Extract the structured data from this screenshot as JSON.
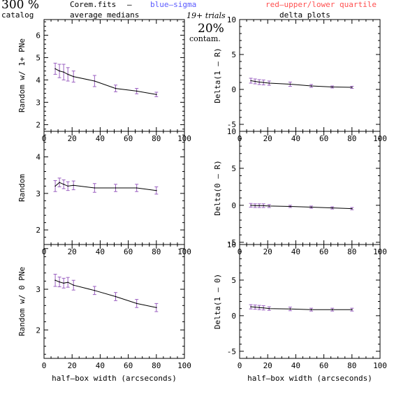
{
  "header": {
    "big_left": "300 %",
    "catalog": "catalog",
    "file": "Corem.fits",
    "dash": "–",
    "blue_label": "blue–sigma",
    "red_label": "red–upper/lower quartile",
    "average_medians": "average medians",
    "trials": "19+ trials",
    "contam_pct": "20%",
    "contam_label": "contam.",
    "delta_plots": "delta plots"
  },
  "colors": {
    "blue": "#5a5aff",
    "red": "#ff5050",
    "errorbar": "#9a5fc0",
    "line": "#000000"
  },
  "chart_data": [
    {
      "type": "line",
      "ylabel": "Random w/ 1+ PNe",
      "xlabel": "",
      "xlim": [
        0,
        100
      ],
      "ylim": [
        1.7,
        6.7
      ],
      "xticks": [
        0,
        20,
        40,
        60,
        80,
        100
      ],
      "yticks": [
        2,
        3,
        4,
        5,
        6
      ],
      "x": [
        8,
        11,
        14,
        17,
        21,
        36,
        51,
        66,
        80
      ],
      "y": [
        4.5,
        4.4,
        4.35,
        4.25,
        4.15,
        3.95,
        3.62,
        3.5,
        3.35
      ],
      "err": [
        0.25,
        0.3,
        0.35,
        0.3,
        0.25,
        0.25,
        0.15,
        0.12,
        0.1
      ]
    },
    {
      "type": "line",
      "ylabel": "Delta(1 – R)",
      "xlabel": "",
      "xlim": [
        0,
        100
      ],
      "ylim": [
        -6,
        10
      ],
      "xticks": [
        0,
        20,
        40,
        60,
        80,
        100
      ],
      "yticks": [
        -5,
        0,
        5,
        10
      ],
      "x": [
        8,
        11,
        14,
        17,
        21,
        36,
        51,
        66,
        80
      ],
      "y": [
        1.25,
        1.15,
        1.05,
        1.0,
        0.9,
        0.75,
        0.5,
        0.35,
        0.3
      ],
      "err": [
        0.35,
        0.35,
        0.35,
        0.35,
        0.3,
        0.3,
        0.2,
        0.15,
        0.15
      ]
    },
    {
      "type": "line",
      "ylabel": "Random",
      "xlabel": "",
      "xlim": [
        0,
        100
      ],
      "ylim": [
        1.6,
        4.7
      ],
      "xticks": [
        0,
        20,
        40,
        60,
        80,
        100
      ],
      "yticks": [
        2,
        3,
        4
      ],
      "x": [
        8,
        11,
        14,
        17,
        21,
        36,
        51,
        66,
        80
      ],
      "y": [
        3.2,
        3.3,
        3.25,
        3.2,
        3.22,
        3.15,
        3.15,
        3.15,
        3.08
      ],
      "err": [
        0.15,
        0.12,
        0.12,
        0.12,
        0.12,
        0.12,
        0.1,
        0.1,
        0.1
      ]
    },
    {
      "type": "line",
      "ylabel": "Delta(0 – R)",
      "xlabel": "",
      "xlim": [
        0,
        100
      ],
      "ylim": [
        -5.3,
        10
      ],
      "xticks": [
        0,
        20,
        40,
        60,
        80,
        100
      ],
      "yticks": [
        -5,
        0,
        5,
        10
      ],
      "x": [
        8,
        11,
        14,
        17,
        21,
        36,
        51,
        66,
        80
      ],
      "y": [
        0.0,
        -0.05,
        -0.05,
        -0.05,
        -0.1,
        -0.15,
        -0.25,
        -0.35,
        -0.45
      ],
      "err": [
        0.25,
        0.25,
        0.25,
        0.25,
        0.2,
        0.15,
        0.15,
        0.15,
        0.15
      ]
    },
    {
      "type": "line",
      "ylabel": "Random w/ 0 PNe",
      "xlabel": "half–box width (arcseconds)",
      "xlim": [
        0,
        100
      ],
      "ylim": [
        1.3,
        4.1
      ],
      "xticks": [
        0,
        20,
        40,
        60,
        80,
        100
      ],
      "yticks": [
        2,
        3
      ],
      "x": [
        8,
        11,
        14,
        17,
        21,
        36,
        51,
        66,
        80
      ],
      "y": [
        3.22,
        3.18,
        3.15,
        3.17,
        3.1,
        2.97,
        2.82,
        2.65,
        2.55
      ],
      "err": [
        0.15,
        0.12,
        0.12,
        0.12,
        0.12,
        0.1,
        0.1,
        0.1,
        0.1
      ]
    },
    {
      "type": "line",
      "ylabel": "Delta(1 – 0)",
      "xlabel": "half–box width (arcseconds)",
      "xlim": [
        0,
        100
      ],
      "ylim": [
        -6,
        10
      ],
      "xticks": [
        0,
        20,
        40,
        60,
        80,
        100
      ],
      "yticks": [
        -5,
        0,
        5,
        10
      ],
      "x": [
        8,
        11,
        14,
        17,
        21,
        36,
        51,
        66,
        80
      ],
      "y": [
        1.25,
        1.2,
        1.15,
        1.1,
        1.0,
        0.95,
        0.85,
        0.85,
        0.85
      ],
      "err": [
        0.3,
        0.3,
        0.3,
        0.3,
        0.25,
        0.25,
        0.2,
        0.2,
        0.2
      ]
    }
  ]
}
